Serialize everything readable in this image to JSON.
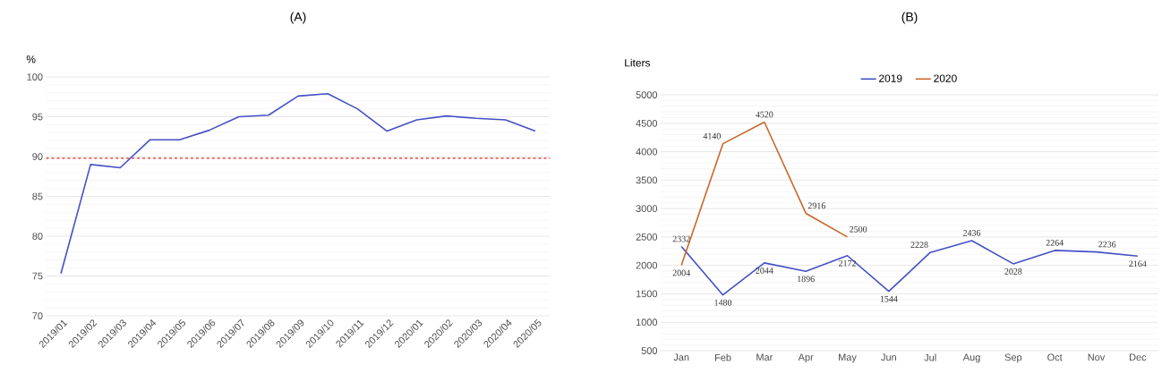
{
  "chart_data": [
    {
      "type": "line",
      "title": "(A)",
      "ylabel": "%",
      "categories": [
        "2019/01",
        "2019/02",
        "2019/03",
        "2019/04",
        "2019/05",
        "2019/06",
        "2019/07",
        "2019/08",
        "2019/09",
        "2019/10",
        "2019/11",
        "2019/12",
        "2020/01",
        "2020/02",
        "2020/03",
        "2020/04",
        "2020/05"
      ],
      "series": [
        {
          "color": "#4451c4",
          "values": [
            75.3,
            89.0,
            88.6,
            92.1,
            92.1,
            93.3,
            95.0,
            95.2,
            97.6,
            97.9,
            96.0,
            93.2,
            94.6,
            95.1,
            94.8,
            94.6,
            93.2
          ]
        }
      ],
      "ylim": [
        70,
        100
      ],
      "yticks": [
        70,
        75,
        80,
        85,
        90,
        95,
        100
      ],
      "grid": "y",
      "ref_lines": [
        {
          "axis": "y",
          "value": 89.8,
          "color": "#e8221c",
          "line_style": "dashed"
        }
      ]
    },
    {
      "type": "line",
      "title": "(B)",
      "ylabel": "Liters",
      "categories": [
        "Jan",
        "Feb",
        "Mar",
        "Apr",
        "May",
        "Jun",
        "Jul",
        "Aug",
        "Sep",
        "Oct",
        "Nov",
        "Dec"
      ],
      "series": [
        {
          "name": "2019",
          "color": "#4451c4",
          "values": [
            2332,
            1480,
            2044,
            1896,
            2172,
            1544,
            2228,
            2436,
            2028,
            2264,
            2236,
            2164
          ]
        },
        {
          "name": "2020",
          "color": "#c8682a",
          "values": [
            2004,
            4140,
            4520,
            2916,
            2500,
            null,
            null,
            null,
            null,
            null,
            null,
            null
          ]
        }
      ],
      "ylim": [
        500,
        5000
      ],
      "yticks": [
        500,
        1000,
        1500,
        2000,
        2500,
        3000,
        3500,
        4000,
        4500,
        5000
      ],
      "grid": "y",
      "legend": "top",
      "data_labels": true
    }
  ]
}
